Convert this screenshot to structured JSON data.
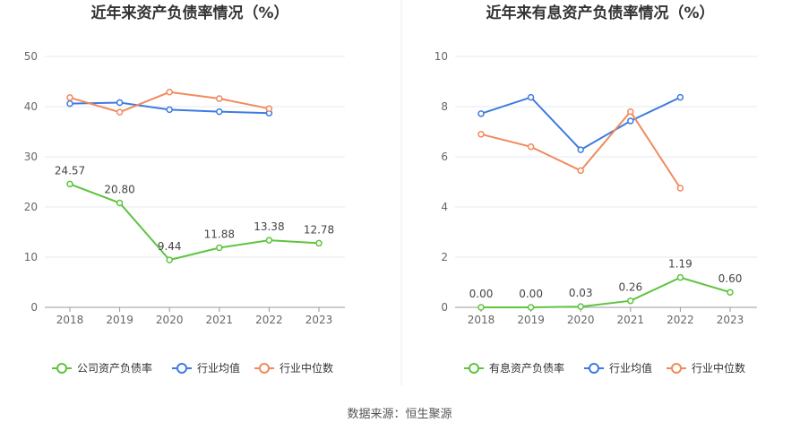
{
  "source": "数据来源：恒生聚源",
  "chart_data": [
    {
      "type": "line",
      "title": "近年来资产负债率情况（%）",
      "categories": [
        "2018",
        "2019",
        "2020",
        "2021",
        "2022",
        "2023"
      ],
      "ylim": [
        0,
        50
      ],
      "yticks": [
        "0",
        "10",
        "20",
        "30",
        "40",
        "50"
      ],
      "series": [
        {
          "name": "公司资产负债率",
          "color": "#5ec43e",
          "values": [
            24.57,
            20.8,
            9.44,
            11.88,
            13.38,
            12.78
          ],
          "labels": [
            "24.57",
            "20.80",
            "9.44",
            "11.88",
            "13.38",
            "12.78"
          ]
        },
        {
          "name": "行业均值",
          "color": "#3d7be0",
          "values": [
            40.6,
            40.8,
            39.4,
            39.0,
            38.7,
            null
          ],
          "labels": []
        },
        {
          "name": "行业中位数",
          "color": "#f08a5d",
          "values": [
            41.8,
            38.9,
            42.9,
            41.6,
            39.6,
            null
          ],
          "labels": []
        }
      ]
    },
    {
      "type": "line",
      "title": "近年来有息资产负债率情况（%）",
      "categories": [
        "2018",
        "2019",
        "2020",
        "2021",
        "2022",
        "2023"
      ],
      "ylim": [
        0,
        10
      ],
      "yticks": [
        "0",
        "2",
        "4",
        "6",
        "8",
        "10"
      ],
      "series": [
        {
          "name": "有息资产负债率",
          "color": "#5ec43e",
          "values": [
            0.0,
            0.0,
            0.03,
            0.26,
            1.19,
            0.6
          ],
          "labels": [
            "0.00",
            "0.00",
            "0.03",
            "0.26",
            "1.19",
            "0.60"
          ]
        },
        {
          "name": "行业均值",
          "color": "#3d7be0",
          "values": [
            7.72,
            8.37,
            6.28,
            7.43,
            8.37,
            null
          ],
          "labels": []
        },
        {
          "name": "行业中位数",
          "color": "#f08a5d",
          "values": [
            6.9,
            6.4,
            5.45,
            7.8,
            4.75,
            null
          ],
          "labels": []
        }
      ]
    }
  ]
}
